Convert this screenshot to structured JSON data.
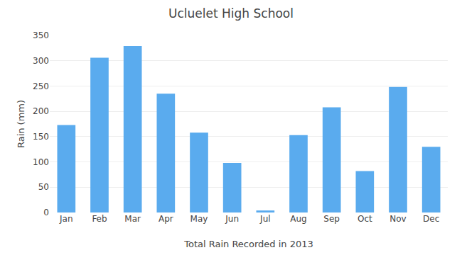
{
  "chart_data": {
    "type": "bar",
    "title": "Ucluelet High School",
    "xlabel": "Total Rain Recorded in 2013",
    "ylabel": "Rain (mm)",
    "categories": [
      "Jan",
      "Feb",
      "Mar",
      "Apr",
      "May",
      "Jun",
      "Jul",
      "Aug",
      "Sep",
      "Oct",
      "Nov",
      "Dec"
    ],
    "values": [
      173,
      306,
      329,
      235,
      158,
      98,
      4,
      153,
      208,
      82,
      248,
      130
    ],
    "color": "#5aabee",
    "ylim": [
      0,
      350
    ],
    "yticks": [
      0,
      50,
      100,
      150,
      200,
      250,
      300,
      350
    ],
    "grid": true
  }
}
